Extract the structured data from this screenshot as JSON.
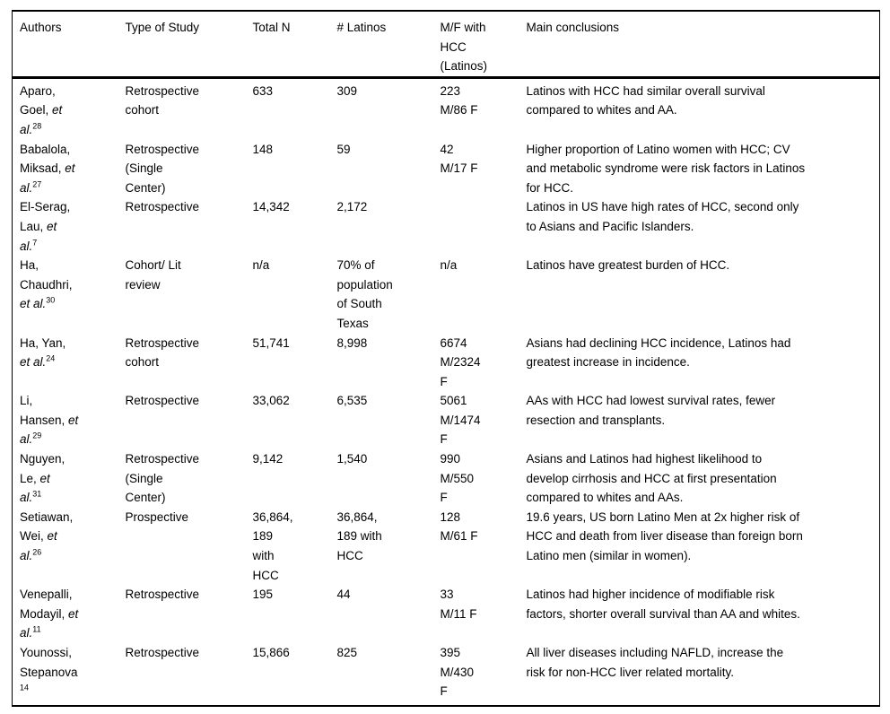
{
  "table": {
    "columns": [
      {
        "key": "authors",
        "label": "Authors"
      },
      {
        "key": "type",
        "label": "Type of Study"
      },
      {
        "key": "total_n",
        "label": "Total N"
      },
      {
        "key": "latinos",
        "label": "# Latinos"
      },
      {
        "key": "mf",
        "label": "M/F with\nHCC\n(Latinos)"
      },
      {
        "key": "conclusions",
        "label": "Main conclusions"
      }
    ],
    "rows": [
      {
        "authors": [
          {
            "t": "Aparo,\nGoel, "
          },
          {
            "t": "et\nal.",
            "i": true
          },
          {
            "t": "28",
            "sup": true
          }
        ],
        "type": "Retrospective\ncohort",
        "total_n": "633",
        "latinos": "309",
        "mf": "223\nM/86 F",
        "conclusions": "Latinos with HCC had similar overall survival\ncompared to whites and AA."
      },
      {
        "authors": [
          {
            "t": "Babalola,\nMiksad, "
          },
          {
            "t": "et\nal.",
            "i": true
          },
          {
            "t": "27",
            "sup": true
          }
        ],
        "type": "Retrospective\n(Single\nCenter)",
        "total_n": "148",
        "latinos": "59",
        "mf": "42\nM/17 F",
        "conclusions": "Higher proportion of Latino women with HCC; CV\nand metabolic syndrome were risk factors in Latinos\nfor HCC."
      },
      {
        "authors": [
          {
            "t": "El-Serag,\nLau, "
          },
          {
            "t": "et\nal.",
            "i": true
          },
          {
            "t": "7",
            "sup": true
          }
        ],
        "type": "Retrospective",
        "total_n": "14,342",
        "latinos": "2,172",
        "mf": "",
        "conclusions": "Latinos in US have high rates of HCC, second only\nto Asians and Pacific Islanders."
      },
      {
        "authors": [
          {
            "t": "Ha,\nChaudhri,\n"
          },
          {
            "t": "et al.",
            "i": true
          },
          {
            "t": "30",
            "sup": true
          }
        ],
        "type": "Cohort/ Lit\nreview",
        "total_n": "n/a",
        "latinos": "70% of\npopulation\nof South\nTexas",
        "mf": "n/a",
        "conclusions": "Latinos have greatest burden of HCC."
      },
      {
        "authors": [
          {
            "t": "Ha, Yan,\n"
          },
          {
            "t": "et al.",
            "i": true
          },
          {
            "t": "24",
            "sup": true
          }
        ],
        "type": "Retrospective\ncohort",
        "total_n": "51,741",
        "latinos": "8,998",
        "mf": "6674\nM/2324\nF",
        "conclusions": "Asians had declining HCC incidence, Latinos had\ngreatest increase in incidence."
      },
      {
        "authors": [
          {
            "t": "Li,\nHansen, "
          },
          {
            "t": "et\nal.",
            "i": true
          },
          {
            "t": "29",
            "sup": true
          }
        ],
        "type": "Retrospective",
        "total_n": "33,062",
        "latinos": "6,535",
        "mf": "5061\nM/1474\nF",
        "conclusions": "AAs with HCC had lowest survival rates, fewer\nresection and transplants."
      },
      {
        "authors": [
          {
            "t": "Nguyen,\nLe, "
          },
          {
            "t": "et\nal.",
            "i": true
          },
          {
            "t": "31",
            "sup": true
          }
        ],
        "type": "Retrospective\n(Single\nCenter)",
        "total_n": "9,142",
        "latinos": "1,540",
        "mf": "990\nM/550\nF",
        "conclusions": "Asians and Latinos had highest likelihood to\ndevelop cirrhosis and HCC at first presentation\ncompared to whites and AAs."
      },
      {
        "authors": [
          {
            "t": "Setiawan,\nWei, "
          },
          {
            "t": "et\nal.",
            "i": true
          },
          {
            "t": "26",
            "sup": true
          }
        ],
        "type": "Prospective",
        "total_n": "36,864,\n189\nwith\nHCC",
        "latinos": "36,864,\n189 with\nHCC",
        "mf": "128\nM/61 F",
        "conclusions": "19.6 years, US born Latino Men at 2x higher risk of\nHCC and death from liver disease than foreign born\nLatino men (similar in women)."
      },
      {
        "authors": [
          {
            "t": "Venepalli,\nModayil, "
          },
          {
            "t": "et\nal.",
            "i": true
          },
          {
            "t": "11",
            "sup": true
          }
        ],
        "type": "Retrospective",
        "total_n": "195",
        "latinos": "44",
        "mf": "33\nM/11 F",
        "conclusions": "Latinos had higher incidence of modifiable risk\nfactors, shorter overall survival than AA and whites."
      },
      {
        "authors": [
          {
            "t": "Younossi,\nStepanova\n"
          },
          {
            "t": "14",
            "sup": true
          }
        ],
        "type": "Retrospective",
        "total_n": "15,866",
        "latinos": "825",
        "mf": "395\nM/430\nF",
        "conclusions": "All liver diseases including NAFLD, increase the\nrisk for non-HCC liver related mortality."
      }
    ]
  }
}
